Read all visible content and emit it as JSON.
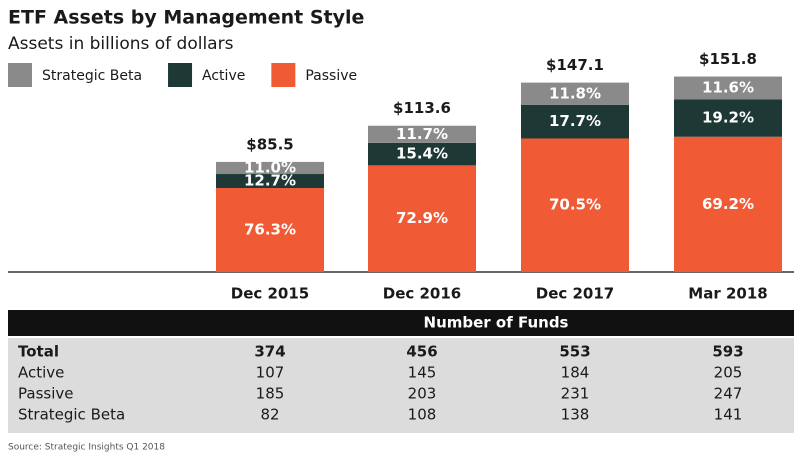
{
  "chart_data": {
    "type": "stacked-bar",
    "title": "ETF Assets by Management Style",
    "subtitle": "Assets in billions of dollars",
    "categories": [
      "Dec 2015",
      "Dec 2016",
      "Dec 2017",
      "Mar 2018"
    ],
    "totals": {
      "values": [
        85.5,
        113.6,
        147.1,
        151.8
      ],
      "value_labels": [
        "$85.5",
        "$113.6",
        "$147.1",
        "$151.8"
      ]
    },
    "series": [
      {
        "name": "Strategic Beta",
        "color": "#8a8a8a",
        "values": [
          11.0,
          11.7,
          11.8,
          11.6
        ],
        "value_labels": [
          "11.0%",
          "11.7%",
          "11.8%",
          "11.6%"
        ]
      },
      {
        "name": "Active",
        "color": "#1e3935",
        "values": [
          12.7,
          15.4,
          17.7,
          19.2
        ],
        "value_labels": [
          "12.7%",
          "15.4%",
          "17.7%",
          "19.2%"
        ]
      },
      {
        "name": "Passive",
        "color": "#f05a35",
        "values": [
          76.3,
          72.9,
          70.5,
          69.2
        ],
        "value_labels": [
          "76.3%",
          "72.9%",
          "70.5%",
          "69.2%"
        ]
      }
    ],
    "ylim": [
      0,
      160
    ],
    "legend": "top-left"
  },
  "table": {
    "title": "Number of Funds",
    "rows": [
      [
        "Total",
        374,
        456,
        553,
        593
      ],
      [
        "Active",
        107,
        145,
        184,
        205
      ],
      [
        "Passive",
        185,
        203,
        231,
        247
      ],
      [
        "Strategic Beta",
        82,
        108,
        138,
        141
      ]
    ]
  },
  "source": "Source: Strategic Insights Q1 2018"
}
